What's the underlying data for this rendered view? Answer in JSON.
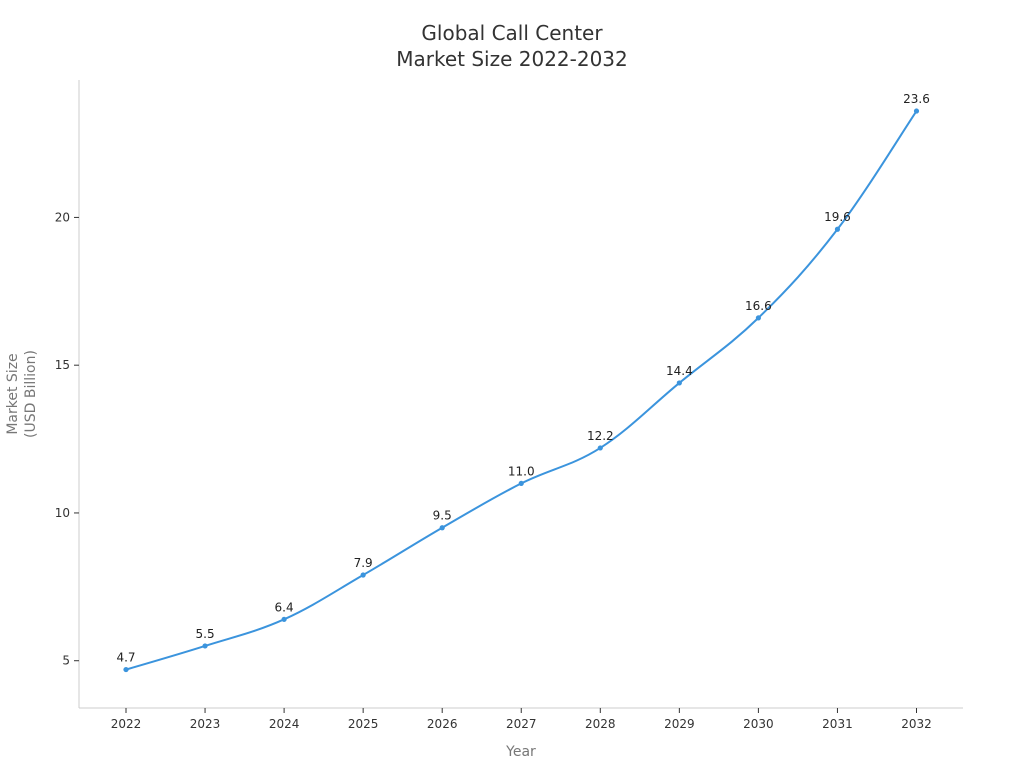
{
  "chart_data": {
    "type": "line",
    "title": [
      "Global Call Center",
      "Market Size 2022-2032"
    ],
    "xlabel": "Year",
    "ylabel": [
      "Market Size",
      "(USD Billion)"
    ],
    "categories": [
      "2022",
      "2023",
      "2024",
      "2025",
      "2026",
      "2027",
      "2028",
      "2029",
      "2030",
      "2031",
      "2032"
    ],
    "series": [
      {
        "name": "Market Size",
        "values": [
          4.7,
          5.5,
          6.4,
          7.9,
          9.5,
          11.0,
          12.2,
          14.4,
          16.6,
          19.6,
          23.6
        ],
        "labels": [
          "4.7",
          "5.5",
          "6.4",
          "7.9",
          "9.5",
          "11.0",
          "12.2",
          "14.4",
          "16.6",
          "19.6",
          "23.6"
        ]
      }
    ],
    "yticks": [
      5,
      10,
      15,
      20
    ],
    "ytick_labels": [
      "5",
      "10",
      "15",
      "20"
    ],
    "ylim": [
      3.4,
      24.65
    ],
    "grid": false,
    "legend": "none",
    "colors": {
      "line": "#3b94dd",
      "axis": "#cccccc",
      "tick": "#333333"
    }
  }
}
